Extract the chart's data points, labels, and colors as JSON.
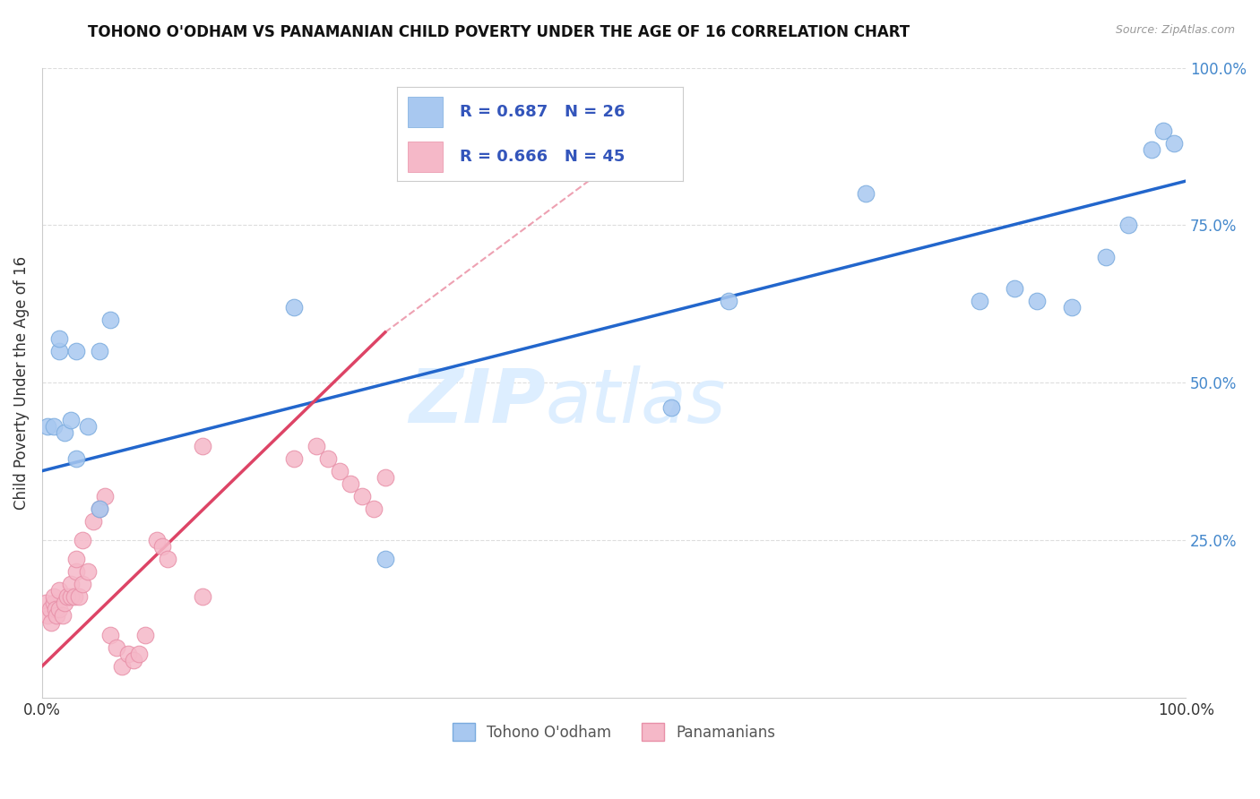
{
  "title": "TOHONO O'ODHAM VS PANAMANIAN CHILD POVERTY UNDER THE AGE OF 16 CORRELATION CHART",
  "source": "Source: ZipAtlas.com",
  "ylabel": "Child Poverty Under the Age of 16",
  "xlim": [
    0,
    1
  ],
  "ylim": [
    0,
    1
  ],
  "blue_R": 0.687,
  "blue_N": 26,
  "pink_R": 0.666,
  "pink_N": 45,
  "blue_color": "#a8c8f0",
  "pink_color": "#f5b8c8",
  "blue_edge_color": "#7aabde",
  "pink_edge_color": "#e890a8",
  "blue_line_color": "#2266cc",
  "pink_line_color": "#dd4466",
  "watermark_zip": "ZIP",
  "watermark_atlas": "atlas",
  "watermark_color": "#ddeeff",
  "legend_R_color": "#3355bb",
  "grid_color": "#dddddd",
  "blue_scatter_x": [
    0.005,
    0.01,
    0.015,
    0.015,
    0.02,
    0.025,
    0.03,
    0.03,
    0.04,
    0.05,
    0.05,
    0.06,
    0.22,
    0.3,
    0.55,
    0.6,
    0.72,
    0.82,
    0.85,
    0.87,
    0.9,
    0.93,
    0.95,
    0.97,
    0.98,
    0.99
  ],
  "blue_scatter_y": [
    0.43,
    0.43,
    0.55,
    0.57,
    0.42,
    0.44,
    0.55,
    0.38,
    0.43,
    0.3,
    0.55,
    0.6,
    0.62,
    0.22,
    0.46,
    0.63,
    0.8,
    0.63,
    0.65,
    0.63,
    0.62,
    0.7,
    0.75,
    0.87,
    0.9,
    0.88
  ],
  "pink_scatter_x": [
    0.003,
    0.005,
    0.007,
    0.008,
    0.01,
    0.01,
    0.012,
    0.013,
    0.015,
    0.015,
    0.018,
    0.02,
    0.022,
    0.025,
    0.025,
    0.028,
    0.03,
    0.03,
    0.032,
    0.035,
    0.035,
    0.04,
    0.045,
    0.05,
    0.055,
    0.06,
    0.065,
    0.07,
    0.075,
    0.08,
    0.085,
    0.09,
    0.1,
    0.105,
    0.11,
    0.14,
    0.14,
    0.22,
    0.24,
    0.25,
    0.26,
    0.27,
    0.28,
    0.29,
    0.3
  ],
  "pink_scatter_y": [
    0.15,
    0.13,
    0.14,
    0.12,
    0.15,
    0.16,
    0.14,
    0.13,
    0.14,
    0.17,
    0.13,
    0.15,
    0.16,
    0.16,
    0.18,
    0.16,
    0.2,
    0.22,
    0.16,
    0.18,
    0.25,
    0.2,
    0.28,
    0.3,
    0.32,
    0.1,
    0.08,
    0.05,
    0.07,
    0.06,
    0.07,
    0.1,
    0.25,
    0.24,
    0.22,
    0.16,
    0.4,
    0.38,
    0.4,
    0.38,
    0.36,
    0.34,
    0.32,
    0.3,
    0.35
  ],
  "blue_line_x0": 0.0,
  "blue_line_x1": 1.0,
  "blue_line_y0": 0.36,
  "blue_line_y1": 0.82,
  "pink_line_solid_x0": 0.0,
  "pink_line_solid_x1": 0.3,
  "pink_line_solid_y0": 0.05,
  "pink_line_solid_y1": 0.58,
  "pink_line_dash_x0": 0.3,
  "pink_line_dash_x1": 0.5,
  "pink_line_dash_y0": 0.58,
  "pink_line_dash_y1": 0.85
}
